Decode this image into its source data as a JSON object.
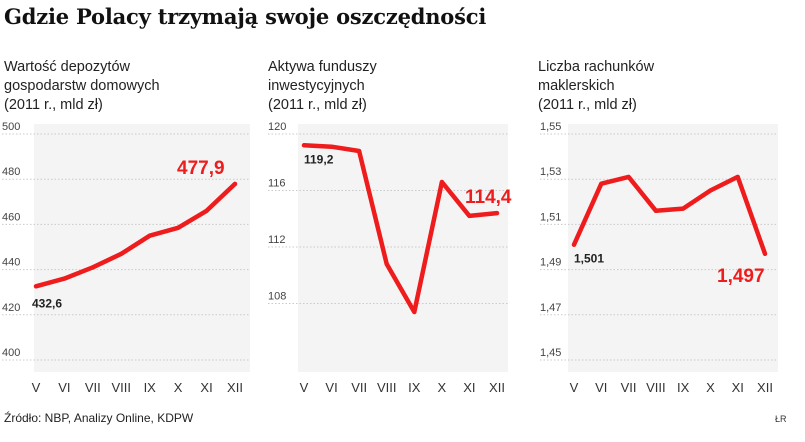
{
  "title": "Gdzie Polacy trzymają swoje oszczędności",
  "source": "Źródło: NBP, Analizy Online, KDPW",
  "credit": "ŁR",
  "accent_color": "#ee1c1c",
  "chart_data": [
    {
      "type": "line",
      "title_lines": [
        "Wartość depozytów",
        "gospodarstw domowych",
        "(2011 r., mld zł)"
      ],
      "categories": [
        "V",
        "VI",
        "VII",
        "VIII",
        "IX",
        "X",
        "XI",
        "XII"
      ],
      "values": [
        432.6,
        436,
        441,
        447,
        455,
        458.5,
        466,
        477.9
      ],
      "ylim": [
        400,
        500
      ],
      "yticks": [
        "400",
        "420",
        "440",
        "460",
        "480",
        "500"
      ],
      "ytick_values": [
        400,
        420,
        440,
        460,
        480,
        500
      ],
      "first_label": "432,6",
      "last_label": "477,9",
      "grid": true
    },
    {
      "type": "line",
      "title_lines": [
        "Aktywa funduszy",
        "inwestycyjnych",
        "(2011 r., mld zł)"
      ],
      "categories": [
        "V",
        "VI",
        "VII",
        "VIII",
        "IX",
        "X",
        "XI",
        "XII"
      ],
      "values": [
        119.2,
        119.1,
        118.8,
        110.8,
        107.4,
        116.6,
        114.2,
        114.4
      ],
      "ylim": [
        104,
        120
      ],
      "yticks": [
        "108",
        "112",
        "116",
        "120"
      ],
      "ytick_values": [
        108,
        112,
        116,
        120
      ],
      "first_label": "119,2",
      "last_label": "114,4",
      "grid": true
    },
    {
      "type": "line",
      "title_lines": [
        "Liczba rachunków",
        "maklerskich",
        "(2011 r., mld zł)"
      ],
      "categories": [
        "V",
        "VI",
        "VII",
        "VIII",
        "IX",
        "X",
        "XI",
        "XII"
      ],
      "values": [
        1.501,
        1.528,
        1.531,
        1.516,
        1.517,
        1.525,
        1.531,
        1.497
      ],
      "ylim": [
        1.45,
        1.55
      ],
      "yticks": [
        "1,45",
        "1,47",
        "1,49",
        "1,51",
        "1,53",
        "1,55"
      ],
      "ytick_values": [
        1.45,
        1.47,
        1.49,
        1.51,
        1.53,
        1.55
      ],
      "first_label": "1,501",
      "last_label": "1,497",
      "grid": true
    }
  ]
}
